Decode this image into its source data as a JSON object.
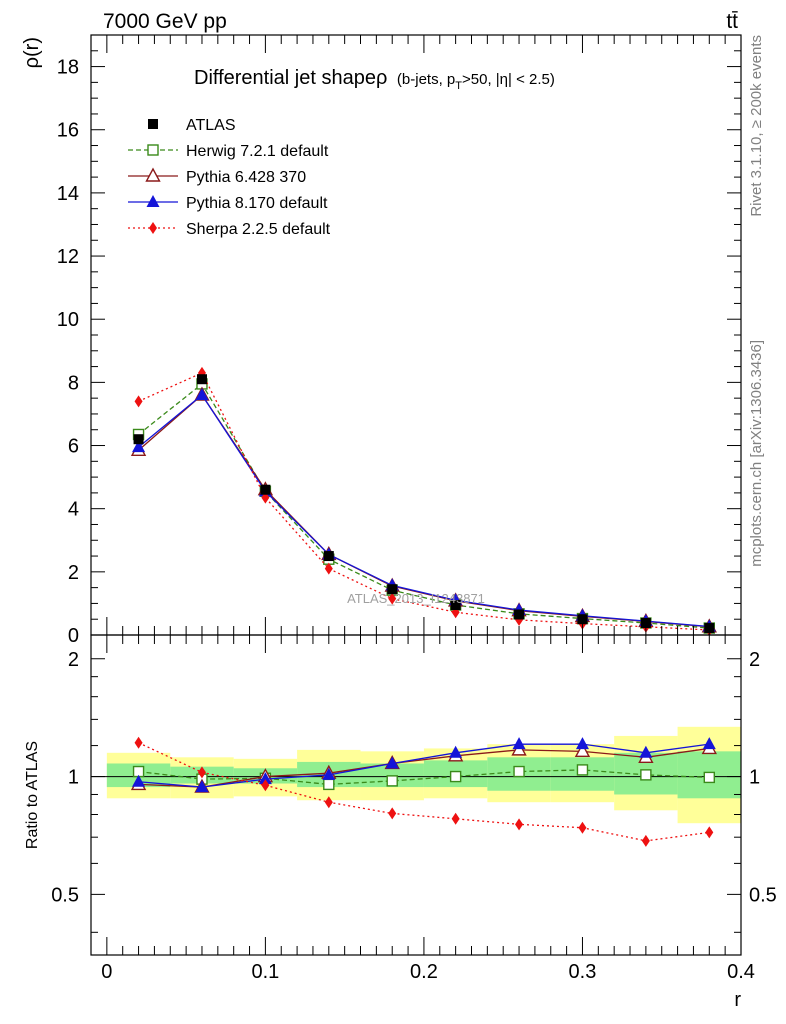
{
  "header": {
    "energy_label": "7000 GeV pp",
    "process_label": "tt̄",
    "rivet_label": "Rivet 3.1.10, ≥ 200k events",
    "mcplots_label": "mcplots.cern.ch [arXiv:1306.3436]",
    "analysis_label": "ATLAS_2013_I1243871"
  },
  "chart_data": [
    {
      "type": "line",
      "title_main": "Differential jet shapeρ",
      "title_sub": "(b-jets, p",
      "title_sub_subscript": "T",
      "title_sub_tail": ">50, |η| < 2.5)",
      "ylabel": "ρ(r)",
      "xlim": [
        -0.01,
        0.4
      ],
      "ylim": [
        0,
        19
      ],
      "y_ticks": [
        0,
        2,
        4,
        6,
        8,
        10,
        12,
        14,
        16,
        18
      ],
      "x": [
        0.02,
        0.06,
        0.1,
        0.14,
        0.18,
        0.22,
        0.26,
        0.3,
        0.34,
        0.38
      ],
      "legend_position": "top-left",
      "series": [
        {
          "name": "ATLAS",
          "color": "#000000",
          "values": [
            6.2,
            8.1,
            4.6,
            2.5,
            1.45,
            0.95,
            0.65,
            0.5,
            0.38,
            0.22
          ]
        },
        {
          "name": "Herwig 7.2.1 default",
          "color": "#3a8a1a",
          "values": [
            6.35,
            7.95,
            4.55,
            2.4,
            1.42,
            0.95,
            0.67,
            0.52,
            0.38,
            0.22
          ]
        },
        {
          "name": "Pythia 6.428 370",
          "color": "#8b1a1a",
          "values": [
            5.85,
            7.6,
            4.6,
            2.55,
            1.55,
            1.08,
            0.77,
            0.59,
            0.43,
            0.26
          ]
        },
        {
          "name": "Pythia 8.170 default",
          "color": "#1414d8",
          "values": [
            5.95,
            7.6,
            4.55,
            2.55,
            1.57,
            1.1,
            0.79,
            0.61,
            0.44,
            0.27
          ]
        },
        {
          "name": "Sherpa 2.2.5 default",
          "color": "#ee1111",
          "values": [
            7.4,
            8.3,
            4.35,
            2.1,
            1.15,
            0.72,
            0.48,
            0.36,
            0.26,
            0.16
          ]
        }
      ]
    },
    {
      "type": "line",
      "ylabel": "Ratio to ATLAS",
      "xlabel": "r",
      "xlim": [
        -0.01,
        0.4
      ],
      "ylim": [
        0.35,
        2.3
      ],
      "y_ticks": [
        0.5,
        1,
        2
      ],
      "x_ticks": [
        0,
        0.1,
        0.2,
        0.3,
        0.4
      ],
      "x_tick_labels": [
        "0",
        "0.1",
        "0.2",
        "0.3",
        "0.4"
      ],
      "x": [
        0.02,
        0.06,
        0.1,
        0.14,
        0.18,
        0.22,
        0.26,
        0.3,
        0.34,
        0.38
      ],
      "bins": [
        [
          0.0,
          0.04
        ],
        [
          0.04,
          0.08
        ],
        [
          0.08,
          0.12
        ],
        [
          0.12,
          0.16
        ],
        [
          0.16,
          0.2
        ],
        [
          0.2,
          0.24
        ],
        [
          0.24,
          0.28
        ],
        [
          0.28,
          0.32
        ],
        [
          0.32,
          0.36
        ],
        [
          0.36,
          0.4
        ]
      ],
      "stat_band": [
        [
          0.94,
          1.08
        ],
        [
          0.96,
          1.06
        ],
        [
          0.96,
          1.05
        ],
        [
          0.94,
          1.09
        ],
        [
          0.94,
          1.08
        ],
        [
          0.94,
          1.1
        ],
        [
          0.92,
          1.12
        ],
        [
          0.92,
          1.12
        ],
        [
          0.9,
          1.15
        ],
        [
          0.88,
          1.16
        ]
      ],
      "syst_band": [
        [
          0.88,
          1.15
        ],
        [
          0.88,
          1.12
        ],
        [
          0.89,
          1.11
        ],
        [
          0.87,
          1.17
        ],
        [
          0.87,
          1.16
        ],
        [
          0.88,
          1.18
        ],
        [
          0.86,
          1.21
        ],
        [
          0.86,
          1.21
        ],
        [
          0.82,
          1.27
        ],
        [
          0.76,
          1.34
        ]
      ],
      "reference_value": 1,
      "band_colors": {
        "stat": "#90ee90",
        "syst": "#ffff99"
      },
      "series": [
        {
          "name": "Herwig 7.2.1 default",
          "color": "#3a8a1a",
          "values": [
            1.03,
            0.985,
            0.99,
            0.955,
            0.975,
            1.0,
            1.03,
            1.04,
            1.01,
            0.995
          ]
        },
        {
          "name": "Pythia 6.428 370",
          "color": "#8b1a1a",
          "values": [
            0.955,
            0.94,
            1.0,
            1.02,
            1.08,
            1.13,
            1.17,
            1.16,
            1.12,
            1.18
          ]
        },
        {
          "name": "Pythia 8.170 default",
          "color": "#1414d8",
          "values": [
            0.97,
            0.94,
            0.985,
            1.01,
            1.08,
            1.15,
            1.21,
            1.21,
            1.15,
            1.21
          ]
        },
        {
          "name": "Sherpa 2.2.5 default",
          "color": "#ee1111",
          "values": [
            1.22,
            1.025,
            0.95,
            0.86,
            0.805,
            0.78,
            0.755,
            0.74,
            0.685,
            0.72
          ]
        }
      ]
    }
  ]
}
